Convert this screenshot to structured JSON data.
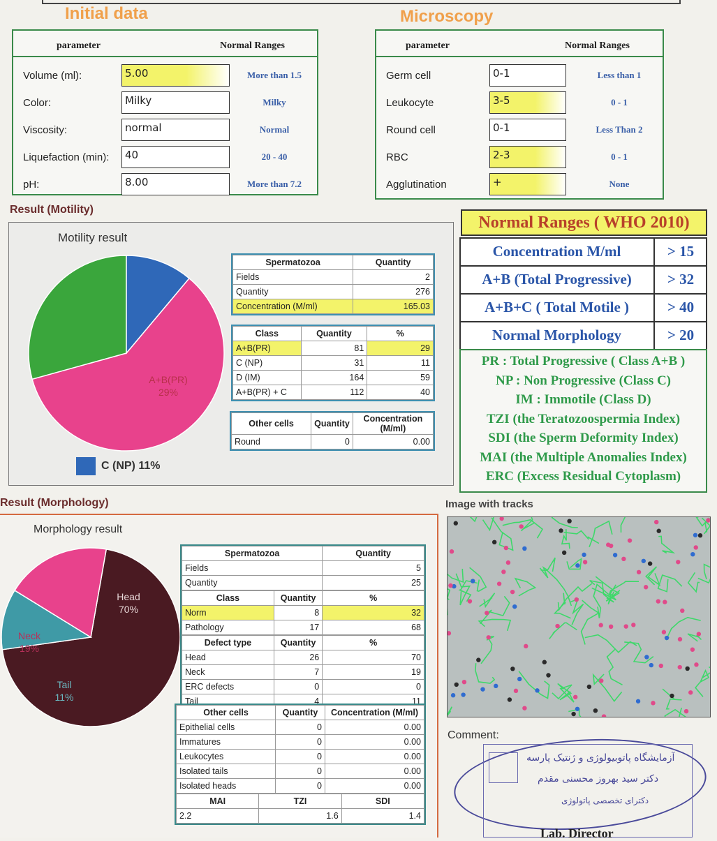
{
  "initial": {
    "title": "Initial data",
    "header_param": "parameter",
    "header_norm": "Normal Ranges",
    "rows": [
      {
        "label": "Volume (ml):",
        "value": "5.00",
        "norm": "More than 1.5",
        "highlight": true
      },
      {
        "label": "Color:",
        "value": "Milky",
        "norm": "Milky",
        "highlight": false
      },
      {
        "label": "Viscosity:",
        "value": "normal",
        "norm": "Normal",
        "highlight": false
      },
      {
        "label": "Liquefaction (min):",
        "value": "40",
        "norm": "20 - 40",
        "highlight": false
      },
      {
        "label": "pH:",
        "value": "8.00",
        "norm": "More than 7.2",
        "highlight": false
      }
    ]
  },
  "microscopy": {
    "title": "Microscopy",
    "header_param": "parameter",
    "header_norm": "Normal Ranges",
    "rows": [
      {
        "label": "Germ cell",
        "value": "0-1",
        "norm": "Less than 1",
        "highlight": false
      },
      {
        "label": "Leukocyte",
        "value": "3-5",
        "norm": "0 - 1",
        "highlight": true
      },
      {
        "label": "Round cell",
        "value": "0-1",
        "norm": "Less Than 2",
        "highlight": false
      },
      {
        "label": "RBC",
        "value": "2-3",
        "norm": "0 - 1",
        "highlight": true
      },
      {
        "label": "Agglutination",
        "value": "+",
        "norm": "None",
        "highlight": true
      }
    ]
  },
  "motility": {
    "section_title": "Result (Motility)",
    "chart_title": "Motility result",
    "pie": [
      {
        "label": "D (IM)",
        "pct": "59%",
        "value": 59,
        "color": "#e8428c"
      },
      {
        "label": "A+B(PR)",
        "pct": "29%",
        "value": 29,
        "color": "#3aa63c"
      },
      {
        "label": "C (NP)",
        "pct": "11%",
        "value": 11,
        "color": "#2f68b8"
      }
    ],
    "legend_label": "C (NP) 11%",
    "sperm_table": {
      "headers": [
        "Spermatozoa",
        "Quantity"
      ],
      "rows": [
        [
          "Fields",
          "2"
        ],
        [
          "Quantity",
          "276"
        ],
        [
          "Concentration (M/ml)",
          "165.03"
        ]
      ]
    },
    "class_table": {
      "headers": [
        "Class",
        "Quantity",
        "%"
      ],
      "rows": [
        [
          "A+B(PR)",
          "81",
          "29"
        ],
        [
          "C (NP)",
          "31",
          "11"
        ],
        [
          "D (IM)",
          "164",
          "59"
        ],
        [
          "A+B(PR) + C",
          "112",
          "40"
        ]
      ]
    },
    "other_table": {
      "headers": [
        "Other cells",
        "Quantity",
        "Concentration (M/ml)"
      ],
      "rows": [
        [
          "Round",
          "0",
          "0.00"
        ]
      ]
    }
  },
  "who": {
    "title": "Normal Ranges ( WHO 2010)",
    "rows": [
      {
        "label": "Concentration M/ml",
        "value": "> 15"
      },
      {
        "label": "A+B (Total Progressive)",
        "value": "> 32"
      },
      {
        "label": "A+B+C ( Total Motile )",
        "value": "> 40"
      },
      {
        "label": "Normal Morphology",
        "value": "> 20"
      }
    ],
    "legend": [
      "PR : Total Progressive ( Class A+B )",
      "NP : Non Progressive (Class C)",
      "IM : Immotile (Class D)",
      "TZI (the Teratozoospermia Index)",
      "SDI (the Sperm Deformity Index)",
      "MAI (the Multiple Anomalies Index)",
      "ERC (Excess Residual Cytoplasm)"
    ]
  },
  "morphology": {
    "section_title": "Result (Morphology)",
    "chart_title": "Morphology result",
    "pie": [
      {
        "label": "Head",
        "pct": "70%",
        "value": 70,
        "color": "#4a1a22"
      },
      {
        "label": "Tail",
        "pct": "11%",
        "value": 11,
        "color": "#3f9aa6"
      },
      {
        "label": "Neck",
        "pct": "19%",
        "value": 19,
        "color": "#e8428c"
      }
    ],
    "sperm_table": {
      "headers": [
        "Spermatozoa",
        "Quantity"
      ],
      "rows": [
        [
          "Fields",
          "5"
        ],
        [
          "Quantity",
          "25"
        ]
      ]
    },
    "class_table": {
      "headers": [
        "Class",
        "Quantity",
        "%"
      ],
      "rows": [
        [
          "Norm",
          "8",
          "32"
        ],
        [
          "Pathology",
          "17",
          "68"
        ]
      ]
    },
    "defect_table": {
      "headers": [
        "Defect type",
        "Quantity",
        "%"
      ],
      "rows": [
        [
          "Head",
          "26",
          "70"
        ],
        [
          "Neck",
          "7",
          "19"
        ],
        [
          "ERC defects",
          "0",
          "0"
        ],
        [
          "Tail",
          "4",
          "11"
        ]
      ]
    },
    "other_table": {
      "headers": [
        "Other cells",
        "Quantity",
        "Concentration (M/ml)"
      ],
      "rows": [
        [
          "Epithelial cells",
          "0",
          "0.00"
        ],
        [
          "Immatures",
          "0",
          "0.00"
        ],
        [
          "Leukocytes",
          "0",
          "0.00"
        ],
        [
          "Isolated tails",
          "0",
          "0.00"
        ],
        [
          "Isolated heads",
          "0",
          "0.00"
        ]
      ]
    },
    "index_table": {
      "headers": [
        "MAI",
        "TZI",
        "SDI"
      ],
      "values": [
        "2.2",
        "1.6",
        "1.4"
      ]
    }
  },
  "tracks": {
    "title": "Image with tracks"
  },
  "comment": {
    "label": "Comment:",
    "stamp_lines": [
      "آزمایشگاه پاتوبیولوژی و ژنتیک پارسه",
      "دکتر سید بهروز محسنی مقدم",
      "دکترای تخصصی پاتولوژی"
    ],
    "footer": "Lab. Director"
  }
}
